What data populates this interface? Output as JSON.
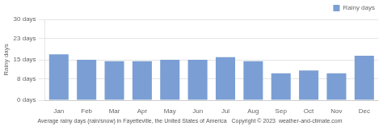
{
  "chart_data": {
    "type": "bar",
    "categories": [
      "Jan",
      "Feb",
      "Mar",
      "Apr",
      "May",
      "Jun",
      "Jul",
      "Aug",
      "Sep",
      "Oct",
      "Nov",
      "Dec"
    ],
    "series": [
      {
        "name": "Rainy days",
        "color": "#7b9fd4",
        "values": [
          17,
          15,
          14.5,
          14.5,
          15,
          15,
          16,
          14.5,
          10,
          11,
          10,
          16.5
        ]
      }
    ],
    "ylabel": "Rainy days",
    "ylim": [
      0,
      30
    ],
    "yticks": [
      {
        "value": 0,
        "label": "0 days"
      },
      {
        "value": 8,
        "label": "8 days"
      },
      {
        "value": 15,
        "label": "15 days"
      },
      {
        "value": 23,
        "label": "23 days"
      },
      {
        "value": 30,
        "label": "30 days"
      }
    ],
    "subtitle": "Average rainy days (rain/snow) in Fayetteville, the United States of America   Copyright © 2023  weather-and-climate.com",
    "grid": true,
    "legend": "upper right"
  }
}
